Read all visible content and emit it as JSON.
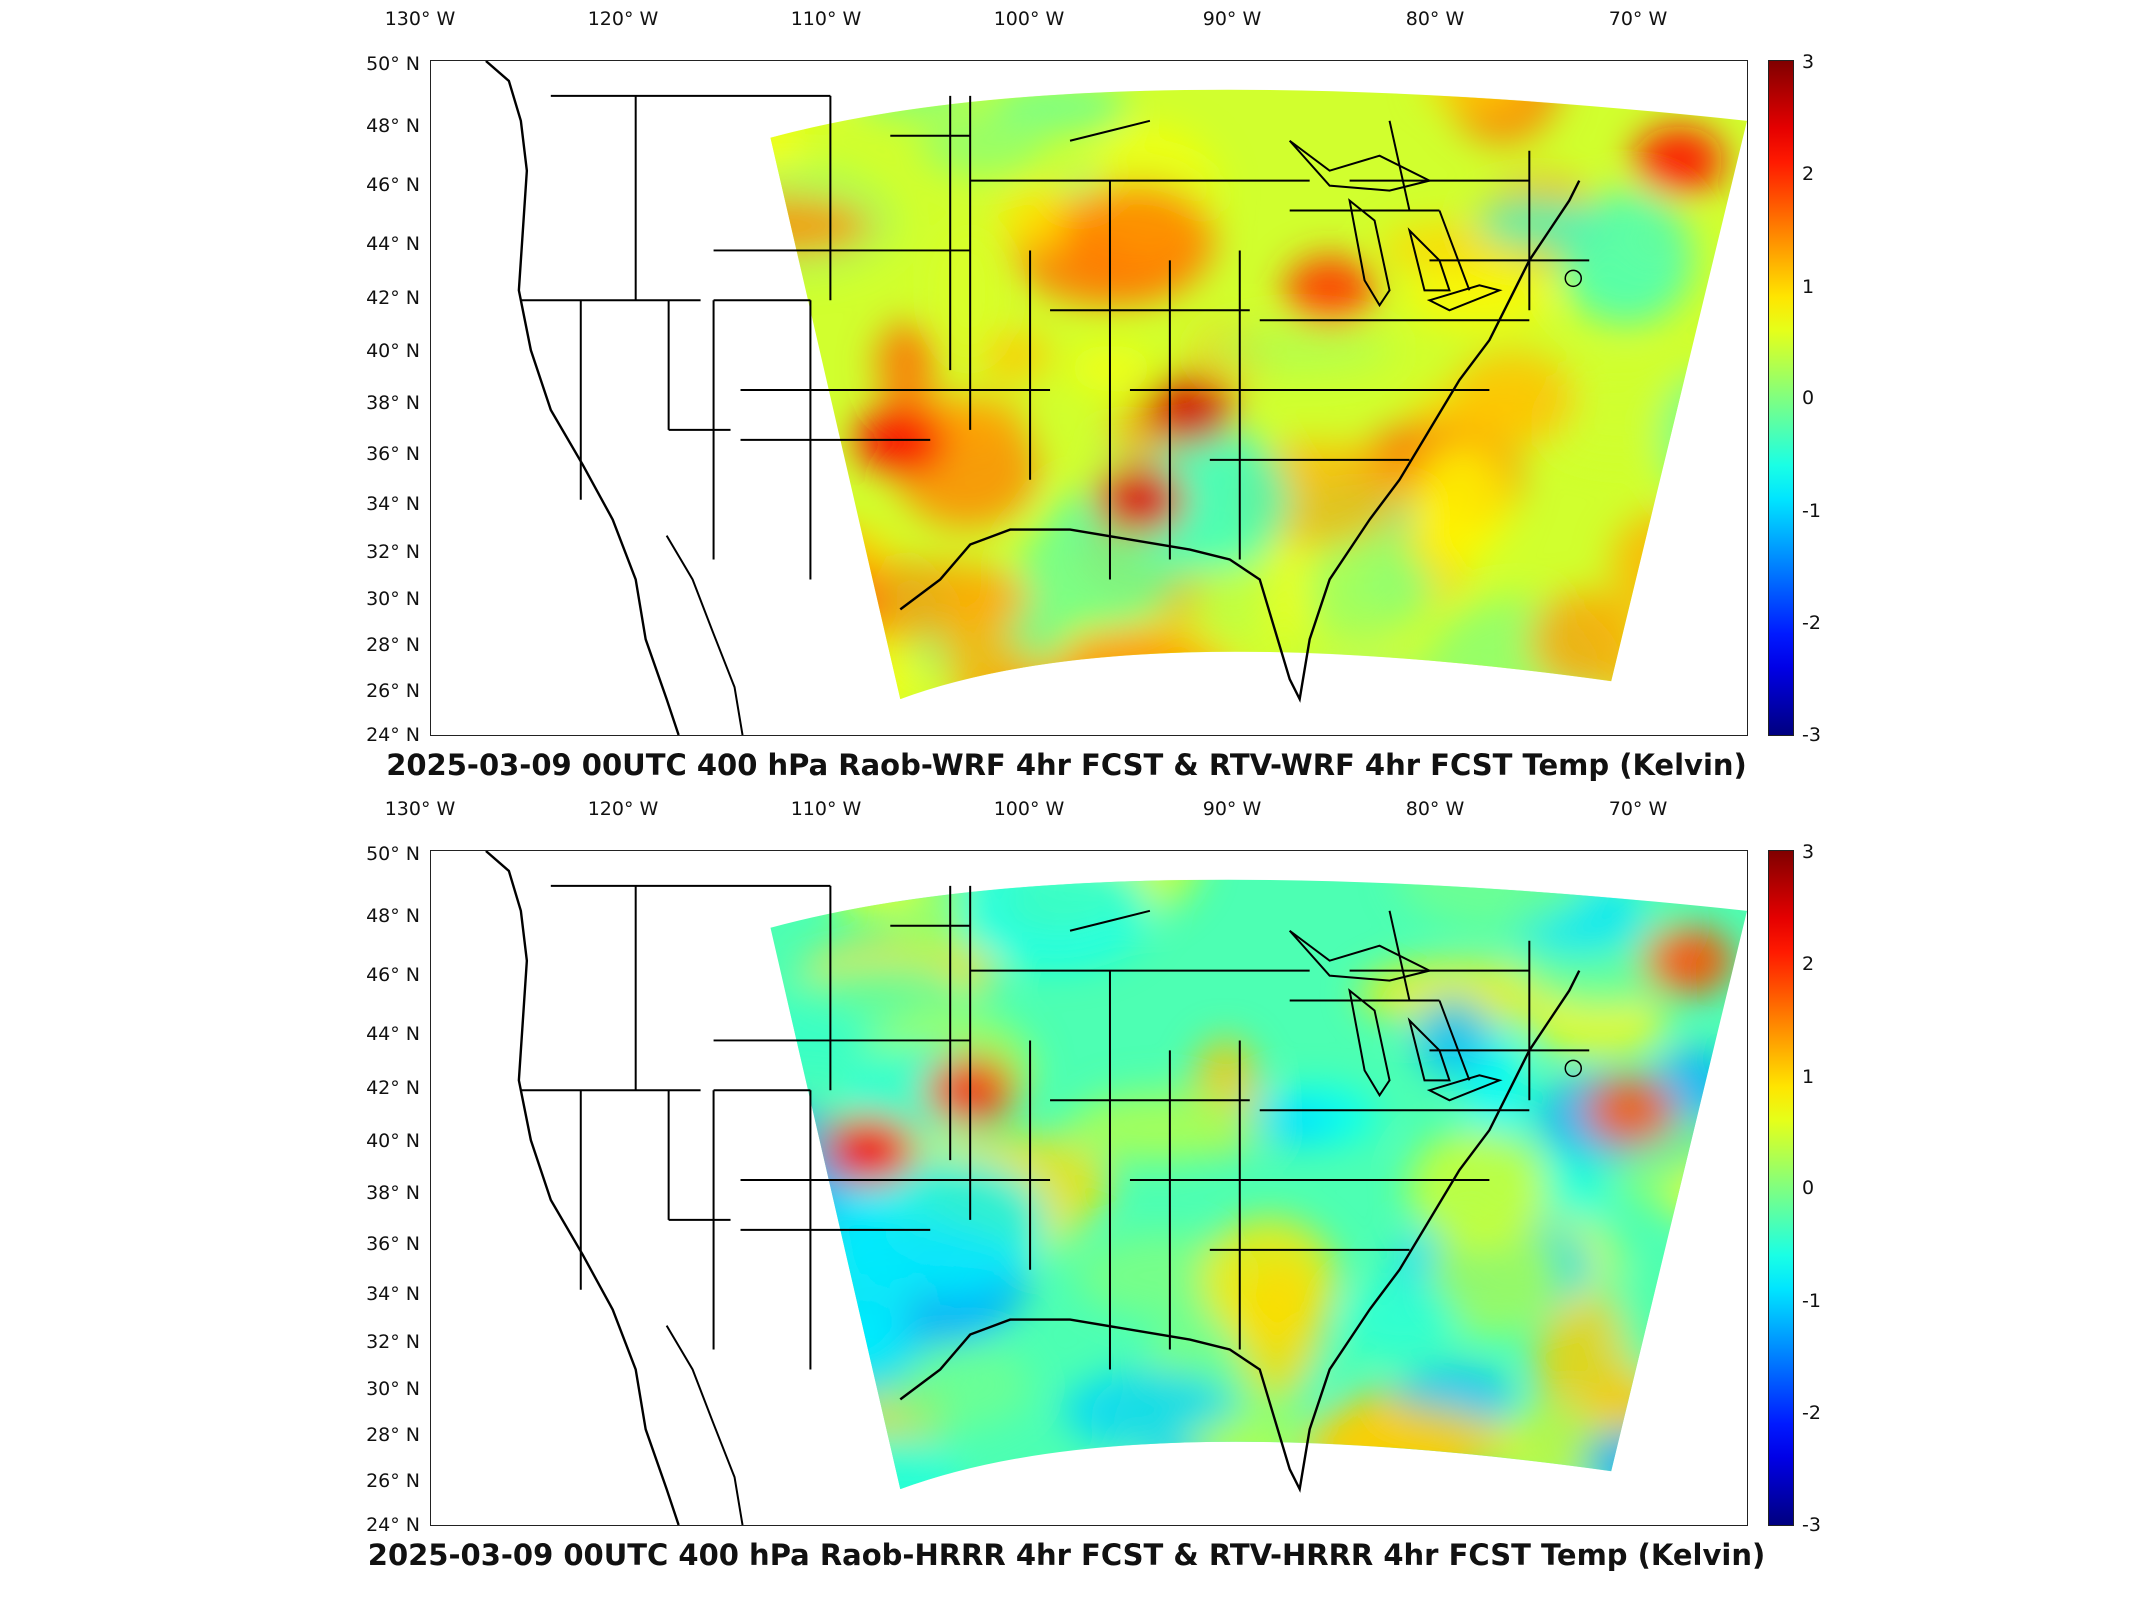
{
  "panels": [
    {
      "title": "2025-03-09 00UTC 400 hPa Raob-WRF 4hr FCST & RTV-WRF 4hr FCST Temp (Kelvin)",
      "variant": "wrf"
    },
    {
      "title": "2025-03-09 00UTC 400 hPa Raob-HRRR 4hr FCST & RTV-HRRR 4hr FCST Temp (Kelvin)",
      "variant": "hrrr"
    }
  ],
  "lon_ticks": [
    "130° W",
    "120° W",
    "110° W",
    "100° W",
    "90° W",
    "80° W",
    "70° W"
  ],
  "lat_ticks": [
    "50° N",
    "48° N",
    "46° N",
    "44° N",
    "42° N",
    "40° N",
    "38° N",
    "36° N",
    "34° N",
    "32° N",
    "30° N",
    "28° N",
    "26° N",
    "24° N"
  ],
  "colorbar": {
    "min": -3,
    "max": 3,
    "labels": [
      "3",
      "2",
      "1",
      "0",
      "-1",
      "-2",
      "-3"
    ],
    "colormap": "jet"
  },
  "colors": {
    "land_border": "#000000",
    "frame": "#222222"
  }
}
